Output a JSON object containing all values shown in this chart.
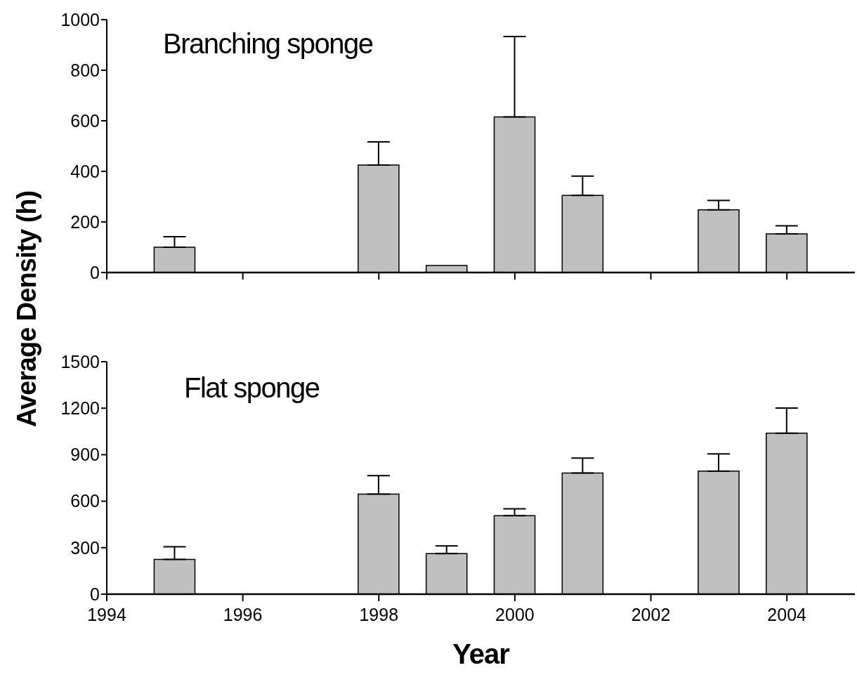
{
  "chart_data": [
    {
      "type": "bar",
      "title": "Branching sponge",
      "ylabel": "Average Density (h)",
      "x": [
        1995,
        1998,
        1999,
        2000,
        2001,
        2003,
        2004
      ],
      "color": "#c0c0c0",
      "values": [
        100,
        425,
        28,
        615,
        305,
        248,
        153
      ],
      "errors": [
        [
          100,
          142
        ],
        [
          425,
          517
        ],
        null,
        [
          615,
          933
        ],
        [
          305,
          381
        ],
        [
          248,
          285
        ],
        [
          153,
          185
        ]
      ],
      "xlim": [
        1994,
        2005
      ],
      "xticks": [
        {
          "value": 1994,
          "label": null
        },
        {
          "value": 1996,
          "label": null
        },
        {
          "value": 1998,
          "label": null
        },
        {
          "value": 2000,
          "label": null
        },
        {
          "value": 2002,
          "label": null
        },
        {
          "value": 2004,
          "label": null
        }
      ],
      "ylim": [
        0,
        1000
      ],
      "yticks": [
        0,
        200,
        400,
        600,
        800,
        1000
      ],
      "tick_labels": "y"
    },
    {
      "type": "bar",
      "title": "Flat sponge",
      "xlabel": "Year",
      "x": [
        1995,
        1998,
        1999,
        2000,
        2001,
        2003,
        2004
      ],
      "color": "#c0c0c0",
      "values": [
        224,
        646,
        262,
        506,
        782,
        794,
        1039
      ],
      "errors": [
        [
          224,
          306
        ],
        [
          646,
          765
        ],
        [
          262,
          312
        ],
        [
          506,
          551
        ],
        [
          782,
          878
        ],
        [
          794,
          905
        ],
        [
          1039,
          1201
        ]
      ],
      "xlim": [
        1994,
        2005
      ],
      "xticks": [
        1994,
        1996,
        1998,
        2000,
        2002,
        2004
      ],
      "ylim": [
        0,
        1500
      ],
      "yticks": [
        0,
        300,
        600,
        900,
        1200,
        1500
      ]
    }
  ]
}
